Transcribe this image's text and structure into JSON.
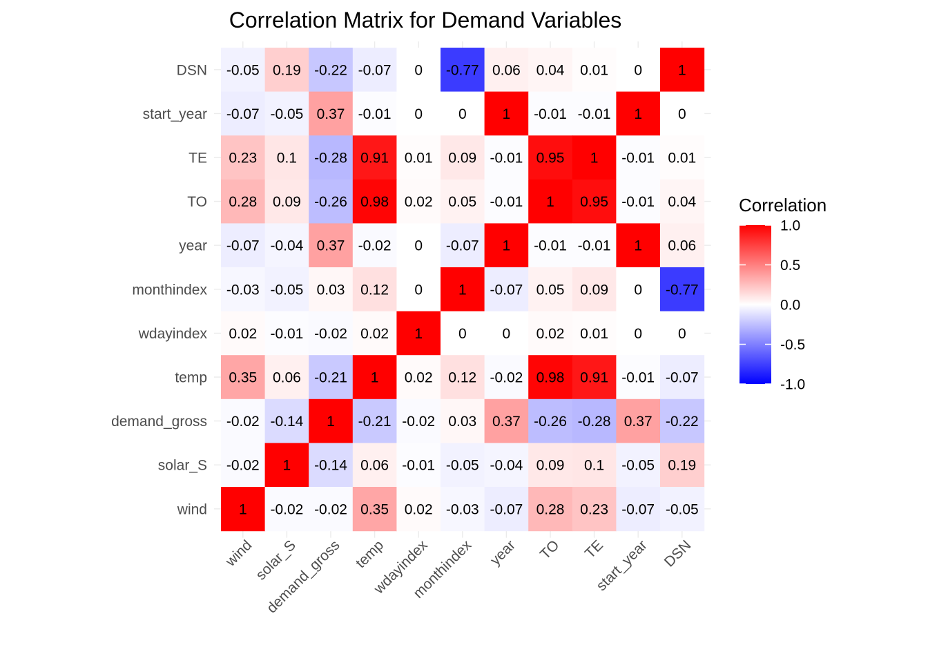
{
  "chart_data": {
    "type": "heatmap",
    "title": "Correlation Matrix for Demand Variables",
    "xlabel": "",
    "ylabel": "",
    "variables": [
      "wind",
      "solar_S",
      "demand_gross",
      "temp",
      "wdayindex",
      "monthindex",
      "year",
      "TO",
      "TE",
      "start_year",
      "DSN"
    ],
    "y_order": [
      "DSN",
      "start_year",
      "TE",
      "TO",
      "year",
      "monthindex",
      "wdayindex",
      "temp",
      "demand_gross",
      "solar_S",
      "wind"
    ],
    "matrix": [
      [
        1,
        -0.02,
        -0.02,
        0.35,
        0.02,
        -0.03,
        -0.07,
        0.28,
        0.23,
        -0.07,
        -0.05
      ],
      [
        -0.02,
        1,
        -0.14,
        0.06,
        -0.01,
        -0.05,
        -0.04,
        0.09,
        0.1,
        -0.05,
        0.19
      ],
      [
        -0.02,
        -0.14,
        1,
        -0.21,
        -0.02,
        0.03,
        0.37,
        -0.26,
        -0.28,
        0.37,
        -0.22
      ],
      [
        0.35,
        0.06,
        -0.21,
        1,
        0.02,
        0.12,
        -0.02,
        0.98,
        0.91,
        -0.01,
        -0.07
      ],
      [
        0.02,
        -0.01,
        -0.02,
        0.02,
        1,
        0,
        0,
        0.02,
        0.01,
        0,
        0
      ],
      [
        -0.03,
        -0.05,
        0.03,
        0.12,
        0,
        1,
        -0.07,
        0.05,
        0.09,
        0,
        -0.77
      ],
      [
        -0.07,
        -0.04,
        0.37,
        -0.02,
        0,
        -0.07,
        1,
        -0.01,
        -0.01,
        1,
        0.06
      ],
      [
        0.28,
        0.09,
        -0.26,
        0.98,
        0.02,
        0.05,
        -0.01,
        1,
        0.95,
        -0.01,
        0.04
      ],
      [
        0.23,
        0.1,
        -0.28,
        0.91,
        0.01,
        0.09,
        -0.01,
        0.95,
        1,
        -0.01,
        0.01
      ],
      [
        -0.07,
        -0.05,
        0.37,
        -0.01,
        0,
        0,
        1,
        -0.01,
        -0.01,
        1,
        0
      ],
      [
        -0.05,
        0.19,
        -0.22,
        -0.07,
        0,
        -0.77,
        0.06,
        0.04,
        0.01,
        0,
        1
      ]
    ],
    "color_scale": {
      "low": "#0000ff",
      "mid": "#ffffff",
      "high": "#ff0000",
      "limits": [
        -1,
        1
      ],
      "midpoint": 0
    },
    "legend": {
      "title": "Correlation",
      "placement": "right",
      "ticks": [
        "1.0",
        "0.5",
        "0.0",
        "-0.5",
        "-1.0"
      ]
    },
    "grid": true
  }
}
